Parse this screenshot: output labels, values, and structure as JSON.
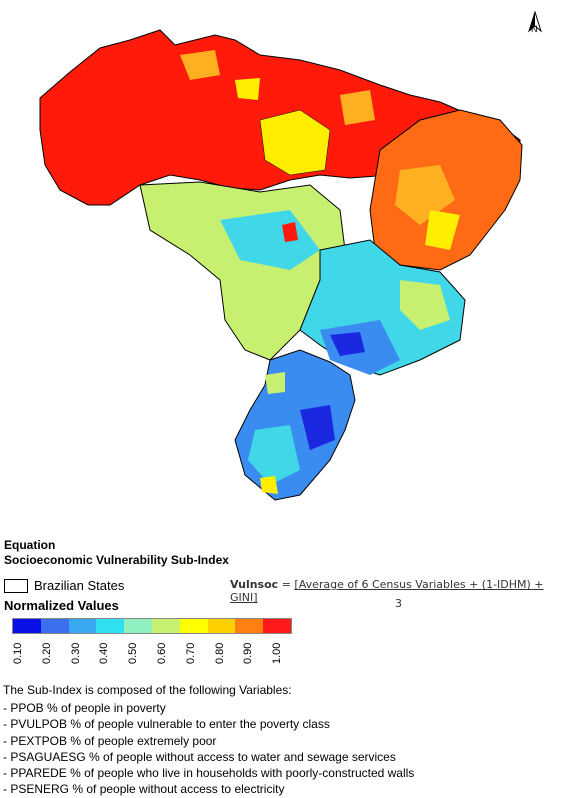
{
  "map": {
    "north_label": "N",
    "fill_colors": {
      "very_high": "#ff1a0a",
      "high": "#ff6a14",
      "mid_high": "#ffb020",
      "mid": "#ffee00",
      "mid_low": "#c8f070",
      "low": "#40d8e8",
      "very_low": "#3a8cf0",
      "lowest": "#1a28e0"
    }
  },
  "legend": {
    "equation_title": "Equation",
    "subindex_title": "Socioeconomic Vulnerability Sub-Index",
    "states_label": "Brazilian States",
    "normalized_title": "Normalized Values",
    "scale_colors": [
      "#0a10e8",
      "#3a70ee",
      "#38a8f0",
      "#2ee0f0",
      "#90f0c0",
      "#c8f070",
      "#ffff00",
      "#ffd000",
      "#ff8010",
      "#ff1a1a"
    ],
    "scale_labels": [
      "0.10",
      "0.20",
      "0.30",
      "0.40",
      "0.50",
      "0.60",
      "0.70",
      "0.80",
      "0.90",
      "1.00"
    ]
  },
  "formula": {
    "lhs": "Vulnsoc",
    "equals": "=",
    "numerator": "[Average of 6 Census Variables + (1-IDHM) + GINI]",
    "denominator": "3"
  },
  "variables": {
    "intro": "The Sub-Index is composed of the following Variables:",
    "items": [
      "- PPOB % of people in poverty",
      "- PVULPOB % of people vulnerable to enter the poverty class",
      "- PEXTPOB % of people extremely poor",
      "- PSAGUAESG % of people without access to water and sewage services",
      "- PPAREDE % of people who live in households with poorly-constructed walls",
      "- PSENERG % of people without access to electricity"
    ]
  }
}
